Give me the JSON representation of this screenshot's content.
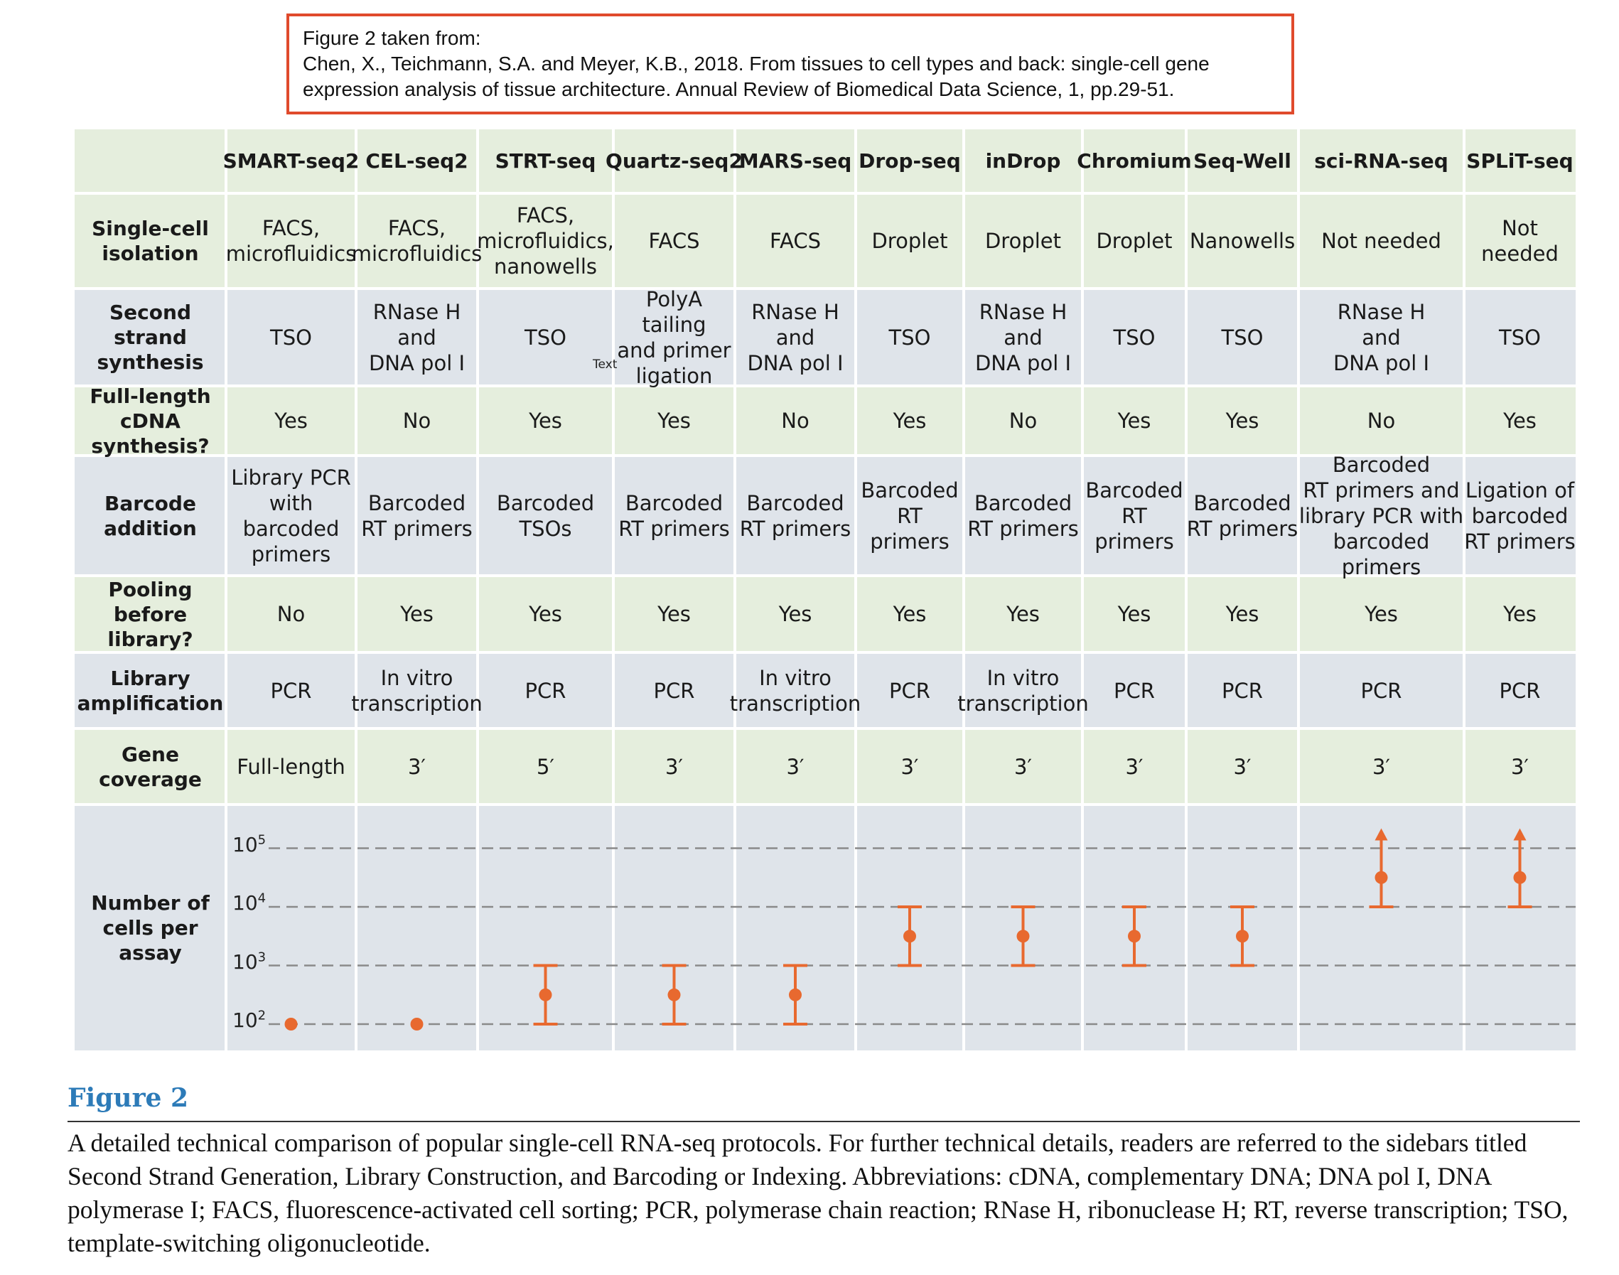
{
  "citation": {
    "line1": "Figure 2 taken from:",
    "line2": "Chen, X., Teichmann, S.A. and Meyer, K.B., 2018. From tissues to cell types and back: single-cell gene",
    "line3": "expression analysis of tissue architecture. Annual Review of Biomedical Data Science, 1, pp.29-51."
  },
  "columns": [
    "SMART-seq2",
    "CEL-seq2",
    "STRT-seq",
    "Quartz-seq2",
    "MARS-seq",
    "Drop-seq",
    "inDrop",
    "Chromium",
    "Seq-Well",
    "sci-RNA-seq",
    "SPLiT-seq"
  ],
  "rows": [
    {
      "label": "Single-cell\nisolation",
      "values": [
        "FACS,\nmicrofluidics",
        "FACS,\nmicrofluidics",
        "FACS,\nmicrofluidics,\nnanowells",
        "FACS",
        "FACS",
        "Droplet",
        "Droplet",
        "Droplet",
        "Nanowells",
        "Not needed",
        "Not needed"
      ]
    },
    {
      "label": "Second strand\nsynthesis",
      "values": [
        "TSO",
        "RNase H\nand\nDNA pol I",
        "TSO",
        "PolyA tailing\nand primer\nligation",
        "RNase H\nand\nDNA pol I",
        "TSO",
        "RNase H\nand\nDNA pol I",
        "TSO",
        "TSO",
        "RNase H\nand\nDNA pol I",
        "TSO"
      ]
    },
    {
      "label": "Full-length\ncDNA synthesis?",
      "values": [
        "Yes",
        "No",
        "Yes",
        "Yes",
        "No",
        "Yes",
        "No",
        "Yes",
        "Yes",
        "No",
        "Yes"
      ]
    },
    {
      "label": "Barcode\naddition",
      "values": [
        "Library PCR\nwith barcoded\nprimers",
        "Barcoded\nRT primers",
        "Barcoded\nTSOs",
        "Barcoded\nRT primers",
        "Barcoded\nRT primers",
        "Barcoded\nRT primers",
        "Barcoded\nRT primers",
        "Barcoded\nRT primers",
        "Barcoded\nRT primers",
        "Barcoded\nRT primers  and\nlibrary PCR with\nbarcoded primers",
        "Ligation of\nbarcoded\nRT primers"
      ]
    },
    {
      "label": "Pooling\nbefore library?",
      "values": [
        "No",
        "Yes",
        "Yes",
        "Yes",
        "Yes",
        "Yes",
        "Yes",
        "Yes",
        "Yes",
        "Yes",
        "Yes"
      ]
    },
    {
      "label": "Library\namplification",
      "values": [
        "PCR",
        "In vitro\ntranscription",
        "PCR",
        "PCR",
        "In vitro\ntranscription",
        "PCR",
        "In vitro\ntranscription",
        "PCR",
        "PCR",
        "PCR",
        "PCR"
      ]
    },
    {
      "label": "Gene\ncoverage",
      "values": [
        "Full-length",
        "3′",
        "5′",
        "3′",
        "3′",
        "3′",
        "3′",
        "3′",
        "3′",
        "3′",
        "3′"
      ]
    }
  ],
  "stray_text": "Text",
  "chart_data": {
    "type": "scatter",
    "title": "",
    "ylabel": "Number of\ncells per assay",
    "y_scale": "log",
    "ylim": [
      100,
      100000
    ],
    "yticks": [
      {
        "base": "10",
        "exp": "2"
      },
      {
        "base": "10",
        "exp": "3"
      },
      {
        "base": "10",
        "exp": "4"
      },
      {
        "base": "10",
        "exp": "5"
      }
    ],
    "grid": "dashed",
    "color": "#e8692f",
    "categories": [
      "SMART-seq2",
      "CEL-seq2",
      "STRT-seq",
      "Quartz-seq2",
      "MARS-seq",
      "Drop-seq",
      "inDrop",
      "Chromium",
      "Seq-Well",
      "sci-RNA-seq",
      "SPLiT-seq"
    ],
    "points": [
      {
        "name": "SMART-seq2",
        "value": 100
      },
      {
        "name": "CEL-seq2",
        "value": 100
      },
      {
        "name": "STRT-seq",
        "value": 316,
        "low": 100,
        "high": 1000
      },
      {
        "name": "Quartz-seq2",
        "value": 316,
        "low": 100,
        "high": 1000
      },
      {
        "name": "MARS-seq",
        "value": 316,
        "low": 100,
        "high": 1000
      },
      {
        "name": "Drop-seq",
        "value": 3162,
        "low": 1000,
        "high": 10000
      },
      {
        "name": "inDrop",
        "value": 3162,
        "low": 1000,
        "high": 10000
      },
      {
        "name": "Chromium",
        "value": 3162,
        "low": 1000,
        "high": 10000
      },
      {
        "name": "Seq-Well",
        "value": 3162,
        "low": 1000,
        "high": 10000
      },
      {
        "name": "sci-RNA-seq",
        "value": 31623,
        "low": 10000,
        "open_ended_high": true
      },
      {
        "name": "SPLiT-seq",
        "value": 31623,
        "low": 10000,
        "open_ended_high": true
      }
    ]
  },
  "figure": {
    "title": "Figure 2",
    "caption": "A detailed technical comparison of popular single-cell RNA-seq protocols. For further technical details, readers are referred to the sidebars titled Second Strand Generation, Library Construction, and Barcoding or Indexing. Abbreviations: cDNA, complementary DNA; DNA pol I, DNA polymerase I; FACS, fluorescence-activated cell sorting; PCR, polymerase chain reaction; RNase H, ribonuclease H; RT, reverse transcription; TSO, template-switching oligonucleotide."
  }
}
